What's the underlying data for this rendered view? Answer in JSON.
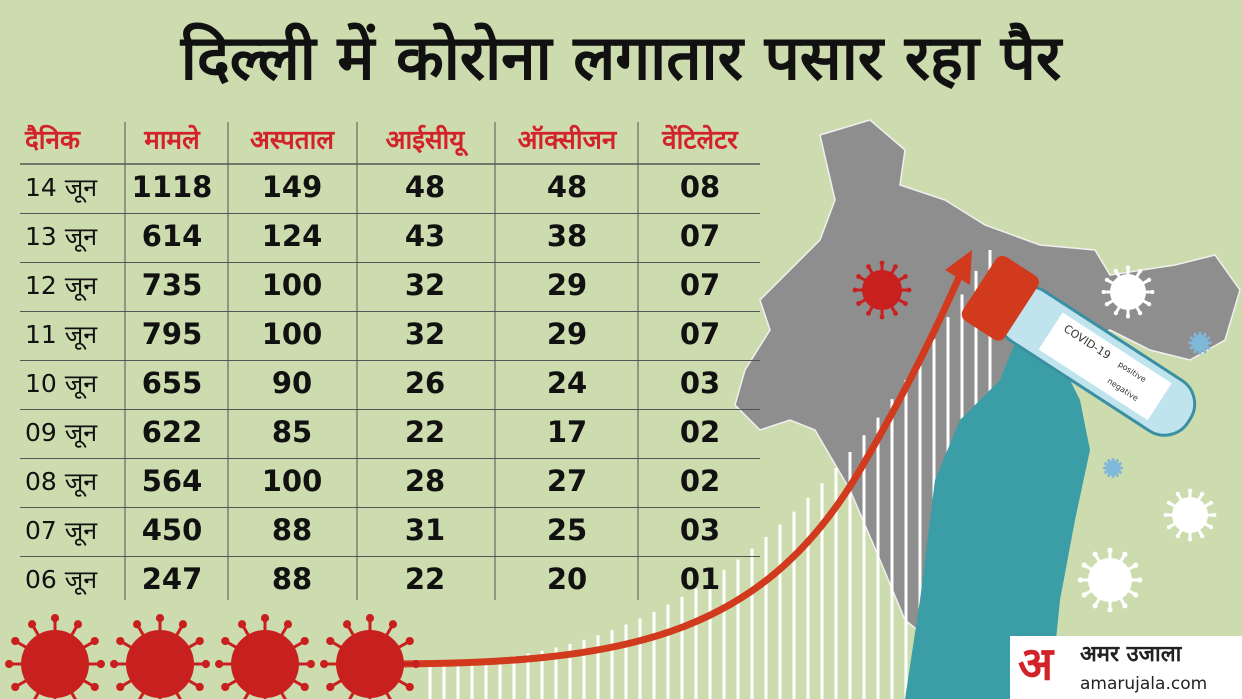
{
  "title": "दिल्ली में कोरोना लगातार पसार रहा पैर",
  "table": {
    "header": [
      "दैनिक",
      "मामले",
      "अस्पताल",
      "आईसीयू",
      "ऑक्सीजन",
      "वेंटिलेटर"
    ],
    "rows": [
      [
        "14 जून",
        "1118",
        "149",
        "48",
        "48",
        "08"
      ],
      [
        "13 जून",
        "614",
        "124",
        "43",
        "38",
        "07"
      ],
      [
        "12 जून",
        "735",
        "100",
        "32",
        "29",
        "07"
      ],
      [
        "11 जून",
        "795",
        "100",
        "32",
        "29",
        "07"
      ],
      [
        "10 जून",
        "655",
        "90",
        "26",
        "24",
        "03"
      ],
      [
        "09 जून",
        "622",
        "85",
        "22",
        "17",
        "02"
      ],
      [
        "08 जून",
        "564",
        "100",
        "28",
        "27",
        "02"
      ],
      [
        "07 जून",
        "450",
        "88",
        "31",
        "25",
        "03"
      ],
      [
        "06 जून",
        "247",
        "88",
        "22",
        "20",
        "01"
      ]
    ]
  },
  "test_tube": {
    "label": "COVID-19",
    "options": [
      "positive",
      "negative"
    ]
  },
  "logo": {
    "mark": "अ",
    "name": "अमर उजाला",
    "url": "amarujala.com"
  }
}
